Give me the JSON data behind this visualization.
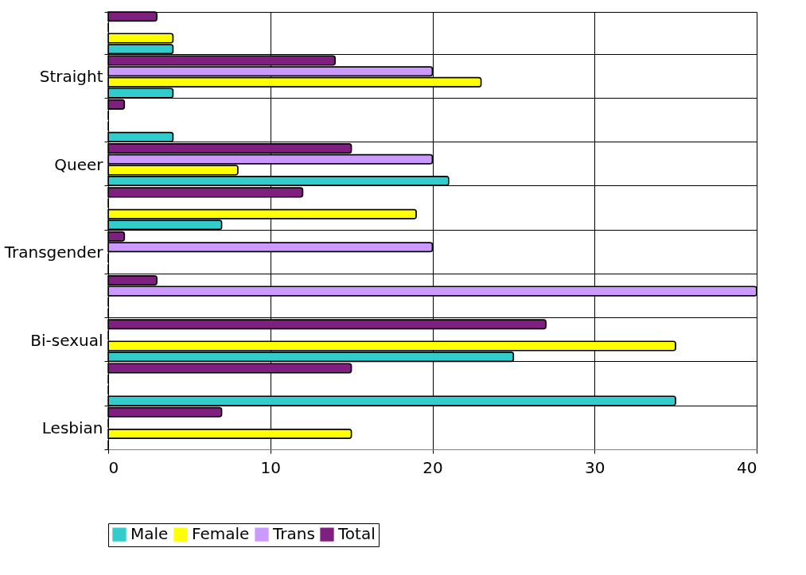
{
  "chart_data": {
    "type": "bar",
    "orientation": "horizontal",
    "categories": [
      null,
      "Straight",
      null,
      "Queer",
      null,
      "Transgender",
      null,
      "Bi-sexual",
      null,
      "Lesbian"
    ],
    "series": [
      {
        "name": "Male",
        "color": "#33cccc",
        "values": [
          4,
          4,
          4,
          21,
          7,
          0,
          0,
          25,
          35,
          0
        ]
      },
      {
        "name": "Female",
        "color": "#ffff00",
        "values": [
          4,
          23,
          0,
          8,
          19,
          0,
          0,
          35,
          0,
          15
        ]
      },
      {
        "name": "Trans",
        "color": "#cc99ff",
        "values": [
          0,
          20,
          0,
          20,
          0,
          20,
          40,
          0,
          0,
          0
        ]
      },
      {
        "name": "Total",
        "color": "#7f1f7f",
        "values": [
          3,
          14,
          1,
          15,
          12,
          1,
          3,
          27,
          15,
          7
        ]
      }
    ],
    "xlim": [
      0,
      40
    ],
    "xticks": [
      0,
      10,
      20,
      30,
      40
    ],
    "grid": true,
    "legend": "bottom"
  }
}
